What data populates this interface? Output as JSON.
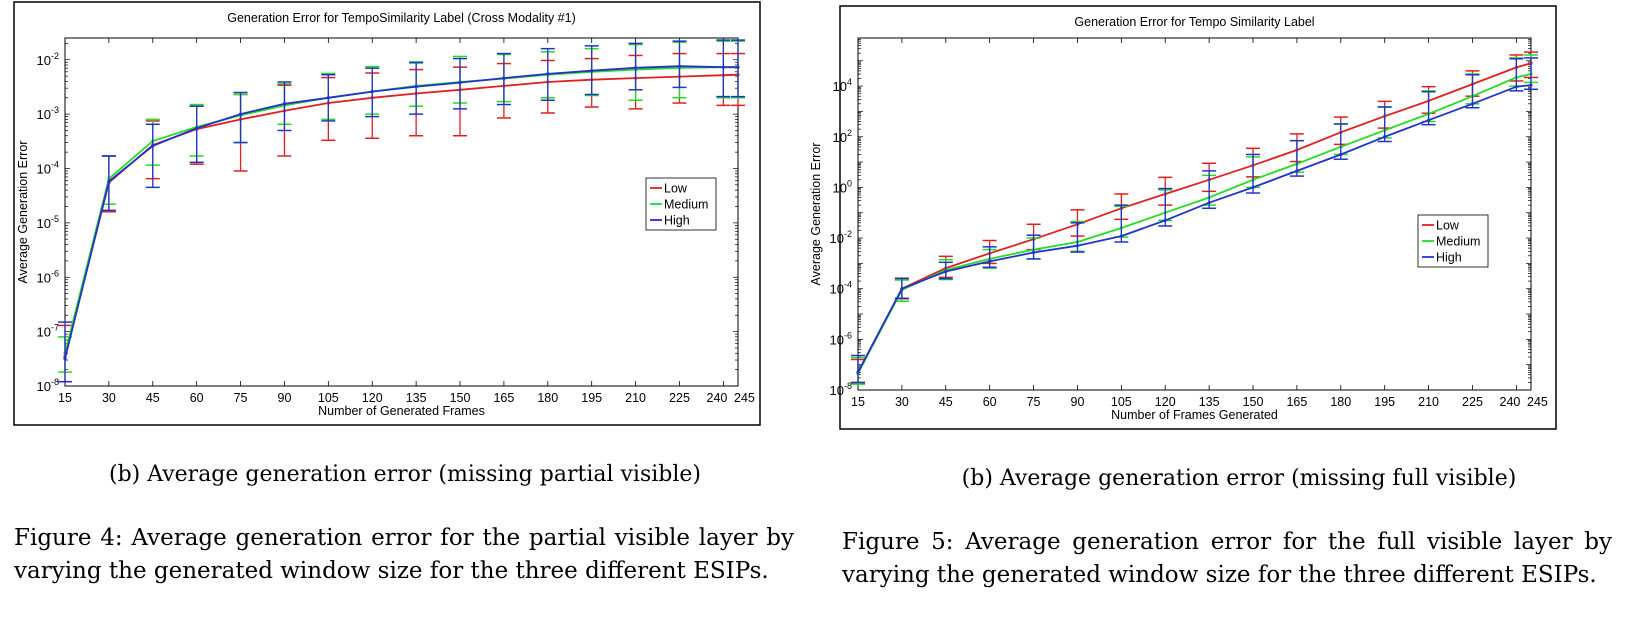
{
  "chart_data": [
    {
      "type": "line",
      "title": "Generation Error for TempoSimilarity Label (Cross Modality #1)",
      "xlabel": "Number of Generated Frames",
      "ylabel": "Average Generation Error",
      "x": [
        15,
        30,
        45,
        60,
        75,
        90,
        105,
        120,
        135,
        150,
        165,
        180,
        195,
        210,
        225,
        240,
        245
      ],
      "xticks": [
        15,
        30,
        45,
        60,
        75,
        90,
        105,
        120,
        135,
        150,
        165,
        180,
        195,
        210,
        225,
        240,
        245
      ],
      "xlim": [
        15,
        245
      ],
      "ylim_exp": [
        -8,
        -1.6
      ],
      "yscale": "log",
      "ytick_exps": [
        -8,
        -7,
        -6,
        -5,
        -4,
        -3,
        -2
      ],
      "ytick_base": "10",
      "legend_position": "right",
      "grid": false,
      "series": [
        {
          "name": "Low",
          "color": "#e02020",
          "values": [
            3.5e-08,
            5.5e-05,
            0.00027,
            0.00053,
            0.0008,
            0.00115,
            0.0016,
            0.002,
            0.0024,
            0.0028,
            0.0033,
            0.0039,
            0.0043,
            0.0046,
            0.0049,
            0.0052,
            0.0053
          ],
          "err_low": [
            1.2e-08,
            1.6e-05,
            6.5e-05,
            0.00012,
            9e-05,
            0.00017,
            0.00033,
            0.00036,
            0.0004,
            0.0004,
            0.00085,
            0.00105,
            0.00135,
            0.00125,
            0.0016,
            0.00145,
            0.00145
          ],
          "err_high": [
            1.3e-07,
            0.00017,
            0.00075,
            0.0014,
            0.0023,
            0.0034,
            0.0047,
            0.0057,
            0.0066,
            0.0073,
            0.0085,
            0.0097,
            0.0105,
            0.012,
            0.013,
            0.013,
            0.013
          ]
        },
        {
          "name": "Medium",
          "color": "#22dd22",
          "values": [
            4e-08,
            6.5e-05,
            0.00032,
            0.00058,
            0.00095,
            0.00145,
            0.002,
            0.0026,
            0.0033,
            0.0039,
            0.0045,
            0.0053,
            0.006,
            0.0066,
            0.0071,
            0.0073,
            0.0073
          ],
          "err_low": [
            1.8e-08,
            2.2e-05,
            0.000115,
            0.00017,
            0.0003,
            0.00065,
            0.0008,
            0.001,
            0.0014,
            0.0016,
            0.0017,
            0.002,
            0.0022,
            0.0018,
            0.002,
            0.002,
            0.002
          ],
          "err_high": [
            8e-08,
            0.00017,
            0.0008,
            0.0015,
            0.0023,
            0.0036,
            0.0056,
            0.0075,
            0.0092,
            0.0115,
            0.0125,
            0.014,
            0.016,
            0.019,
            0.021,
            0.022,
            0.022
          ]
        },
        {
          "name": "High",
          "color": "#2233cc",
          "values": [
            3.2e-08,
            5.8e-05,
            0.00026,
            0.00055,
            0.001,
            0.00155,
            0.002,
            0.0026,
            0.0032,
            0.0038,
            0.0046,
            0.0055,
            0.0063,
            0.0071,
            0.0076,
            0.0073,
            0.0073
          ],
          "err_low": [
            1.2e-08,
            1.7e-05,
            4.5e-05,
            0.00013,
            0.0003,
            0.0005,
            0.00075,
            0.0009,
            0.001,
            0.00125,
            0.0015,
            0.0018,
            0.0023,
            0.0028,
            0.0031,
            0.0021,
            0.0021
          ],
          "err_high": [
            1.5e-07,
            0.00017,
            0.00065,
            0.0014,
            0.0025,
            0.0039,
            0.0053,
            0.007,
            0.0088,
            0.0105,
            0.013,
            0.016,
            0.018,
            0.02,
            0.022,
            0.023,
            0.023
          ]
        }
      ]
    },
    {
      "type": "line",
      "title": "Generation Error for Tempo Similarity Label",
      "xlabel": "Number of Frames Generated",
      "ylabel": "Average Generation Error",
      "x": [
        15,
        30,
        45,
        60,
        75,
        90,
        105,
        120,
        135,
        150,
        165,
        180,
        195,
        210,
        225,
        240,
        245
      ],
      "xticks": [
        15,
        30,
        45,
        60,
        75,
        90,
        105,
        120,
        135,
        150,
        165,
        180,
        195,
        210,
        225,
        240,
        245
      ],
      "xlim": [
        15,
        245
      ],
      "ylim_exp": [
        -8,
        5.9
      ],
      "yscale": "log",
      "ytick_exps": [
        -8,
        -6,
        -4,
        -2,
        0,
        2,
        4
      ],
      "ytick_base": "10",
      "legend_position": "right",
      "grid": false,
      "series": [
        {
          "name": "Low",
          "color": "#e02020",
          "values": [
            5e-08,
            0.0001,
            0.00065,
            0.0025,
            0.009,
            0.035,
            0.15,
            0.55,
            2.0,
            7.5,
            30.0,
            150.0,
            650.0,
            2600.0,
            12000.0,
            55000.0,
            80000.0
          ],
          "err_low": [
            1.8e-08,
            4e-05,
            0.00028,
            0.001,
            0.0035,
            0.012,
            0.055,
            0.2,
            0.7,
            2.6,
            10.5,
            50.0,
            220.0,
            850.0,
            4000.0,
            16000.0,
            22000.0
          ],
          "err_high": [
            1.6e-07,
            0.00024,
            0.0019,
            0.008,
            0.035,
            0.13,
            0.55,
            2.5,
            9.0,
            35.0,
            130.0,
            600.0,
            2500.0,
            9500.0,
            40000.0,
            170000.0,
            220000.0
          ]
        },
        {
          "name": "Medium",
          "color": "#22dd22",
          "values": [
            4.5e-08,
            9e-05,
            0.00055,
            0.0015,
            0.0035,
            0.007,
            0.025,
            0.1,
            0.4,
            2.0,
            8.5,
            40.0,
            180.0,
            800.0,
            4000.0,
            22000.0,
            30000.0
          ],
          "err_low": [
            1.7e-08,
            3.2e-05,
            0.00023,
            0.00065,
            0.0015,
            0.003,
            0.011,
            0.05,
            0.2,
            1.0,
            4.0,
            20.0,
            90.0,
            400.0,
            2000.0,
            10000.0,
            14000.0
          ],
          "err_high": [
            1.9e-07,
            0.00022,
            0.0014,
            0.0035,
            0.01,
            0.045,
            0.18,
            0.8,
            3.0,
            16.0,
            70.0,
            320.0,
            1500.0,
            6500.0,
            30000.0,
            130000.0,
            170000.0
          ]
        },
        {
          "name": "High",
          "color": "#2233cc",
          "values": [
            5e-08,
            0.0001,
            0.00048,
            0.0012,
            0.0027,
            0.005,
            0.012,
            0.05,
            0.25,
            1.0,
            4.5,
            20.0,
            100.0,
            450.0,
            2000.0,
            9500.0,
            11000.0
          ],
          "err_low": [
            2e-08,
            4.2e-05,
            0.00025,
            0.0007,
            0.0015,
            0.0028,
            0.007,
            0.03,
            0.15,
            0.6,
            2.8,
            13.0,
            65.0,
            300.0,
            1400.0,
            6500.0,
            7500.0
          ],
          "err_high": [
            2.3e-07,
            0.00026,
            0.0011,
            0.0045,
            0.013,
            0.04,
            0.2,
            0.9,
            4.5,
            20.0,
            70.0,
            320.0,
            1500.0,
            6000.0,
            28000.0,
            120000.0,
            130000.0
          ]
        }
      ]
    }
  ],
  "captions": {
    "left_subcaption": "(b) Average generation error (missing partial visible)",
    "right_subcaption": "(b) Average generation error (missing full visible)",
    "figure4": "Figure 4: Average generation error for the partial visible layer by varying the generated window size for the three different ESIPs.",
    "figure5": "Figure 5: Average generation error for the full visible layer by varying the generated window size for the three different ESIPs."
  }
}
